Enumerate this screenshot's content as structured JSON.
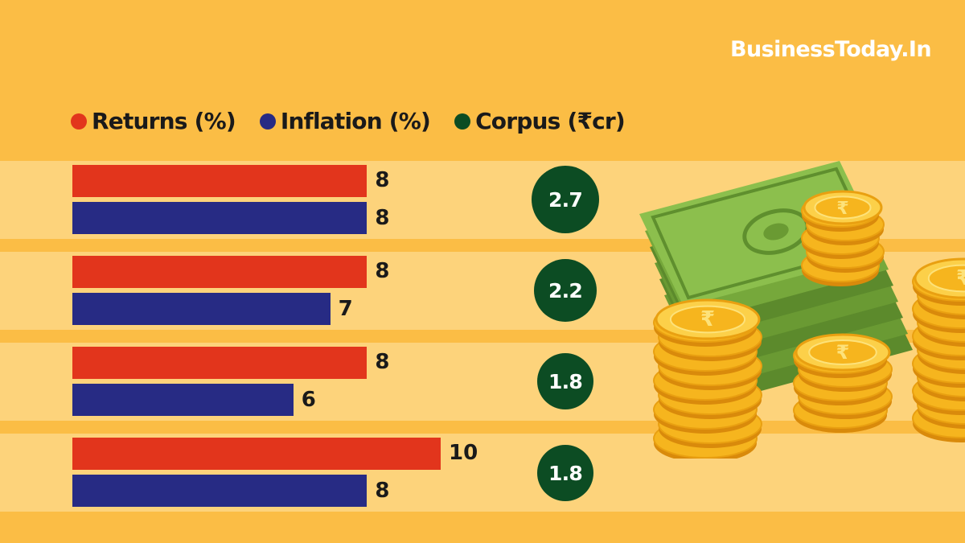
{
  "brand": "BusinessToday.In",
  "legend": [
    {
      "label": "Returns (%)",
      "color": "#e2351c"
    },
    {
      "label": "Inflation (%)",
      "color": "#272b84"
    },
    {
      "label": "Corpus (₹cr)",
      "color": "#0c4c23"
    }
  ],
  "colors": {
    "returns": "#e2351c",
    "inflation": "#272b84",
    "corpus": "#0c4c23",
    "background": "#fbbd45",
    "band": "#fdd37b"
  },
  "illustration": {
    "icons": [
      "banknote-stack-icon",
      "rupee-coin-stack-icon"
    ],
    "coin_symbol": "₹"
  },
  "chart_data": {
    "type": "bar",
    "orientation": "horizontal",
    "legend_position": "top-left",
    "grid": false,
    "series": [
      {
        "name": "Returns (%)",
        "values": [
          8,
          8,
          8,
          10
        ]
      },
      {
        "name": "Inflation (%)",
        "values": [
          8,
          7,
          6,
          8
        ]
      },
      {
        "name": "Corpus (₹cr)",
        "values": [
          2.7,
          2.2,
          1.8,
          1.8
        ]
      }
    ],
    "labels": {
      "returns": [
        "8",
        "8",
        "8",
        "10"
      ],
      "inflation": [
        "8",
        "7",
        "6",
        "8"
      ],
      "corpus": [
        "2.7",
        "2.2",
        "1.8",
        "1.8"
      ]
    }
  }
}
